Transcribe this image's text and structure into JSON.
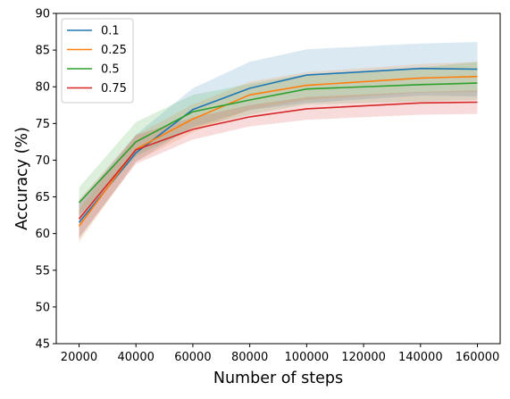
{
  "chart_data": {
    "type": "line",
    "title": "",
    "xlabel": "Number of steps",
    "ylabel": "Accuracy (%)",
    "xlim": [
      12000,
      168000
    ],
    "ylim": [
      45,
      90
    ],
    "xticks": [
      20000,
      40000,
      60000,
      80000,
      100000,
      120000,
      140000,
      160000
    ],
    "yticks": [
      45,
      50,
      55,
      60,
      65,
      70,
      75,
      80,
      85,
      90
    ],
    "grid": false,
    "legend_position": "upper left",
    "x": [
      20000,
      40000,
      60000,
      80000,
      100000,
      140000,
      160000
    ],
    "series": [
      {
        "name": "0.1",
        "color": "#1f77b4",
        "values": [
          61.5,
          71.0,
          76.9,
          79.8,
          81.6,
          82.5,
          82.4
        ],
        "lower": [
          59.2,
          69.8,
          74.5,
          76.8,
          77.8,
          78.8,
          78.7
        ],
        "upper": [
          64.0,
          73.5,
          79.8,
          83.4,
          85.1,
          85.9,
          86.1
        ]
      },
      {
        "name": "0.25",
        "color": "#ff7f0e",
        "values": [
          61.0,
          71.5,
          75.6,
          78.9,
          80.2,
          81.2,
          81.4
        ],
        "lower": [
          58.8,
          69.8,
          73.8,
          76.9,
          78.2,
          79.2,
          79.3
        ],
        "upper": [
          63.3,
          73.4,
          77.6,
          80.7,
          82.0,
          83.1,
          83.4
        ]
      },
      {
        "name": "0.5",
        "color": "#2ca02c",
        "values": [
          64.2,
          72.5,
          76.6,
          78.2,
          79.7,
          80.3,
          80.5
        ],
        "lower": [
          62.5,
          70.5,
          74.4,
          76.2,
          77.6,
          78.0,
          78.2
        ],
        "upper": [
          66.3,
          75.2,
          78.9,
          80.4,
          81.7,
          82.6,
          83.4
        ]
      },
      {
        "name": "0.75",
        "color": "#d62728",
        "values": [
          62.0,
          71.4,
          74.2,
          75.9,
          77.0,
          77.8,
          77.9
        ],
        "lower": [
          59.5,
          69.5,
          72.8,
          74.6,
          75.5,
          76.2,
          76.3
        ],
        "upper": [
          64.6,
          73.4,
          75.8,
          77.5,
          78.6,
          79.3,
          79.5
        ]
      }
    ]
  }
}
